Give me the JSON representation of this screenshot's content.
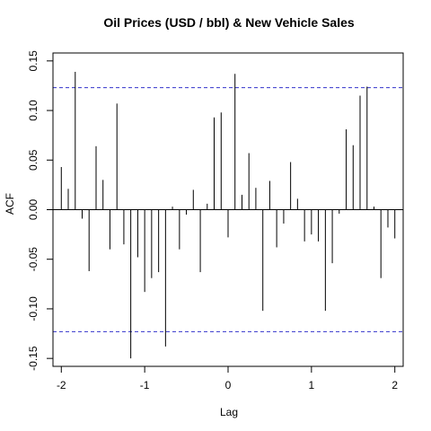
{
  "chart_data": {
    "type": "bar",
    "title": "Oil Prices (USD / bbl) & New Vehicle Sales",
    "xlabel": "Lag",
    "ylabel": "ACF",
    "xlim": [
      -2.1,
      2.1
    ],
    "ylim": [
      -0.158,
      0.158
    ],
    "xticks": [
      {
        "value": -2,
        "label": "-2"
      },
      {
        "value": -1,
        "label": "-1"
      },
      {
        "value": 0,
        "label": "0"
      },
      {
        "value": 1,
        "label": "1"
      },
      {
        "value": 2,
        "label": "2"
      }
    ],
    "yticks": [
      {
        "value": -0.15,
        "label": "-0.15"
      },
      {
        "value": -0.1,
        "label": "-0.10"
      },
      {
        "value": -0.05,
        "label": "-0.05"
      },
      {
        "value": 0.0,
        "label": "0.00"
      },
      {
        "value": 0.05,
        "label": "0.05"
      },
      {
        "value": 0.1,
        "label": "0.10"
      },
      {
        "value": 0.15,
        "label": "0.15"
      }
    ],
    "confidence_bounds": [
      0.123,
      -0.123
    ],
    "colors": {
      "bars": "#000000",
      "zero_line": "#000000",
      "confidence": "#3333cc",
      "frame": "#000000"
    },
    "lags": [
      -2.0,
      -1.917,
      -1.833,
      -1.75,
      -1.667,
      -1.583,
      -1.5,
      -1.417,
      -1.333,
      -1.25,
      -1.167,
      -1.083,
      -1.0,
      -0.917,
      -0.833,
      -0.75,
      -0.667,
      -0.583,
      -0.5,
      -0.417,
      -0.333,
      -0.25,
      -0.167,
      -0.083,
      0.0,
      0.083,
      0.167,
      0.25,
      0.333,
      0.417,
      0.5,
      0.583,
      0.667,
      0.75,
      0.833,
      0.917,
      1.0,
      1.083,
      1.167,
      1.25,
      1.333,
      1.417,
      1.5,
      1.583,
      1.667,
      1.75,
      1.833,
      1.917,
      2.0
    ],
    "values": [
      0.043,
      0.021,
      0.139,
      -0.009,
      -0.062,
      0.064,
      0.03,
      -0.04,
      0.107,
      -0.035,
      -0.15,
      -0.048,
      -0.083,
      -0.069,
      -0.063,
      -0.138,
      0.003,
      -0.04,
      -0.005,
      0.02,
      -0.063,
      0.006,
      0.093,
      0.098,
      -0.028,
      0.137,
      0.015,
      0.057,
      0.022,
      -0.102,
      0.029,
      -0.038,
      -0.014,
      0.048,
      0.011,
      -0.032,
      -0.025,
      -0.032,
      -0.102,
      -0.054,
      -0.004,
      0.081,
      0.065,
      0.115,
      0.124,
      0.003,
      -0.069,
      -0.018,
      -0.029
    ]
  }
}
